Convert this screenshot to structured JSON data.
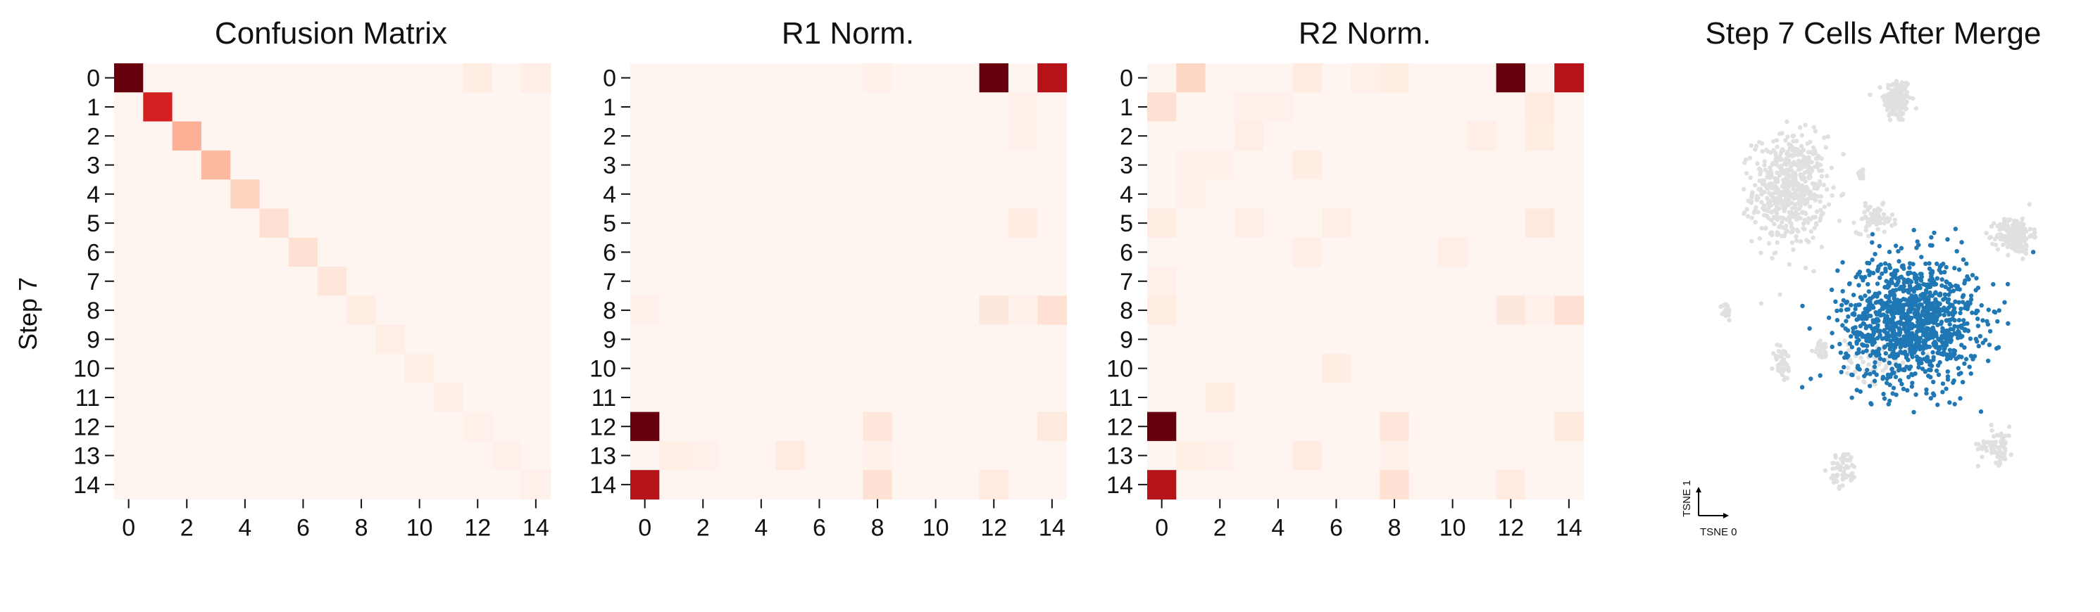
{
  "figure": {
    "ylabel": "Step 7"
  },
  "colormap": {
    "name": "Reds",
    "stops": [
      "#fff5f0",
      "#fee0d2",
      "#fcbba1",
      "#fc9272",
      "#fb6a4a",
      "#ef3b2c",
      "#cb181d",
      "#a50f15",
      "#67000d"
    ]
  },
  "chart_data": [
    {
      "type": "heatmap",
      "title": "Confusion Matrix",
      "rows": [
        "0",
        "1",
        "2",
        "3",
        "4",
        "5",
        "6",
        "7",
        "8",
        "9",
        "10",
        "11",
        "12",
        "13",
        "14"
      ],
      "cols": [
        "0",
        "1",
        "2",
        "3",
        "4",
        "5",
        "6",
        "7",
        "8",
        "9",
        "10",
        "11",
        "12",
        "13",
        "14"
      ],
      "xticks": [
        "0",
        "2",
        "4",
        "6",
        "8",
        "10",
        "12",
        "14"
      ],
      "ylabel": "Step 7",
      "vmax": 1.0,
      "matrix": [
        [
          1.0,
          0,
          0,
          0,
          0,
          0,
          0,
          0,
          0,
          0,
          0,
          0,
          0.05,
          0,
          0.04
        ],
        [
          0,
          0.72,
          0,
          0,
          0,
          0,
          0,
          0,
          0,
          0,
          0,
          0,
          0,
          0,
          0
        ],
        [
          0,
          0,
          0.28,
          0,
          0,
          0,
          0,
          0,
          0,
          0,
          0,
          0,
          0,
          0,
          0
        ],
        [
          0,
          0,
          0,
          0.25,
          0,
          0,
          0,
          0,
          0,
          0,
          0,
          0,
          0,
          0,
          0
        ],
        [
          0,
          0,
          0,
          0,
          0.17,
          0,
          0,
          0,
          0,
          0,
          0,
          0,
          0,
          0,
          0
        ],
        [
          0,
          0,
          0,
          0,
          0,
          0.12,
          0,
          0,
          0,
          0,
          0,
          0,
          0,
          0,
          0
        ],
        [
          0,
          0,
          0,
          0,
          0,
          0,
          0.12,
          0,
          0,
          0,
          0,
          0,
          0,
          0,
          0
        ],
        [
          0,
          0,
          0,
          0,
          0,
          0,
          0,
          0.09,
          0,
          0,
          0,
          0,
          0,
          0,
          0
        ],
        [
          0,
          0,
          0,
          0,
          0,
          0,
          0,
          0,
          0.05,
          0,
          0,
          0,
          0,
          0,
          0
        ],
        [
          0,
          0,
          0,
          0,
          0,
          0,
          0,
          0,
          0,
          0.04,
          0,
          0,
          0,
          0,
          0
        ],
        [
          0,
          0,
          0,
          0,
          0,
          0,
          0,
          0,
          0,
          0,
          0.04,
          0,
          0,
          0,
          0
        ],
        [
          0,
          0,
          0,
          0,
          0,
          0,
          0,
          0,
          0,
          0,
          0,
          0.04,
          0,
          0,
          0
        ],
        [
          0,
          0,
          0,
          0,
          0,
          0,
          0,
          0,
          0,
          0,
          0,
          0,
          0.03,
          0,
          0
        ],
        [
          0,
          0,
          0,
          0,
          0,
          0,
          0,
          0,
          0,
          0,
          0,
          0,
          0,
          0.03,
          0
        ],
        [
          0,
          0,
          0,
          0,
          0,
          0,
          0,
          0,
          0,
          0,
          0,
          0,
          0,
          0,
          0.03
        ]
      ]
    },
    {
      "type": "heatmap",
      "title": "R1 Norm.",
      "rows": [
        "0",
        "1",
        "2",
        "3",
        "4",
        "5",
        "6",
        "7",
        "8",
        "9",
        "10",
        "11",
        "12",
        "13",
        "14"
      ],
      "cols": [
        "0",
        "1",
        "2",
        "3",
        "4",
        "5",
        "6",
        "7",
        "8",
        "9",
        "10",
        "11",
        "12",
        "13",
        "14"
      ],
      "xticks": [
        "0",
        "2",
        "4",
        "6",
        "8",
        "10",
        "12",
        "14"
      ],
      "vmax": 1.0,
      "matrix": [
        [
          0,
          0,
          0,
          0,
          0,
          0,
          0,
          0,
          0.03,
          0,
          0,
          0,
          1.0,
          0,
          0.82
        ],
        [
          0,
          0,
          0,
          0,
          0,
          0,
          0,
          0,
          0,
          0,
          0,
          0,
          0,
          0.03,
          0
        ],
        [
          0,
          0,
          0,
          0,
          0,
          0,
          0,
          0,
          0,
          0,
          0,
          0,
          0,
          0.03,
          0
        ],
        [
          0,
          0,
          0,
          0,
          0,
          0,
          0,
          0,
          0,
          0,
          0,
          0,
          0,
          0,
          0
        ],
        [
          0,
          0,
          0,
          0,
          0,
          0,
          0,
          0,
          0,
          0,
          0,
          0,
          0,
          0,
          0
        ],
        [
          0,
          0,
          0,
          0,
          0,
          0,
          0,
          0,
          0,
          0,
          0,
          0,
          0,
          0.06,
          0
        ],
        [
          0,
          0,
          0,
          0,
          0,
          0,
          0,
          0,
          0,
          0,
          0,
          0,
          0,
          0,
          0
        ],
        [
          0,
          0,
          0,
          0,
          0,
          0,
          0,
          0,
          0,
          0,
          0,
          0,
          0,
          0,
          0
        ],
        [
          0.03,
          0,
          0,
          0,
          0,
          0,
          0,
          0,
          0,
          0,
          0,
          0,
          0.08,
          0.03,
          0.12
        ],
        [
          0,
          0,
          0,
          0,
          0,
          0,
          0,
          0,
          0,
          0,
          0,
          0,
          0,
          0,
          0
        ],
        [
          0,
          0,
          0,
          0,
          0,
          0,
          0,
          0,
          0,
          0,
          0,
          0,
          0,
          0,
          0
        ],
        [
          0,
          0,
          0,
          0,
          0,
          0,
          0,
          0,
          0,
          0,
          0,
          0,
          0,
          0,
          0
        ],
        [
          1.0,
          0,
          0,
          0,
          0,
          0,
          0,
          0,
          0.09,
          0,
          0,
          0,
          0,
          0,
          0.07
        ],
        [
          0,
          0.04,
          0.03,
          0,
          0,
          0.06,
          0,
          0,
          0.03,
          0,
          0,
          0,
          0,
          0,
          0
        ],
        [
          0.82,
          0,
          0,
          0,
          0,
          0,
          0,
          0,
          0.12,
          0,
          0,
          0,
          0.06,
          0,
          0
        ]
      ]
    },
    {
      "type": "heatmap",
      "title": "R2 Norm.",
      "rows": [
        "0",
        "1",
        "2",
        "3",
        "4",
        "5",
        "6",
        "7",
        "8",
        "9",
        "10",
        "11",
        "12",
        "13",
        "14"
      ],
      "cols": [
        "0",
        "1",
        "2",
        "3",
        "4",
        "5",
        "6",
        "7",
        "8",
        "9",
        "10",
        "11",
        "12",
        "13",
        "14"
      ],
      "xticks": [
        "0",
        "2",
        "4",
        "6",
        "8",
        "10",
        "12",
        "14"
      ],
      "vmax": 1.0,
      "matrix": [
        [
          0,
          0.16,
          0,
          0,
          0,
          0.06,
          0,
          0.03,
          0.05,
          0,
          0,
          0,
          1.0,
          0,
          0.82
        ],
        [
          0.12,
          0,
          0,
          0.03,
          0.03,
          0,
          0,
          0,
          0,
          0,
          0,
          0,
          0,
          0.06,
          0
        ],
        [
          0,
          0,
          0,
          0.04,
          0,
          0,
          0,
          0,
          0,
          0,
          0,
          0.04,
          0,
          0.05,
          0
        ],
        [
          0,
          0.03,
          0.03,
          0,
          0,
          0.05,
          0,
          0,
          0,
          0,
          0,
          0,
          0,
          0,
          0
        ],
        [
          0,
          0.03,
          0,
          0,
          0,
          0,
          0,
          0,
          0,
          0,
          0,
          0,
          0,
          0,
          0
        ],
        [
          0.05,
          0,
          0,
          0.04,
          0,
          0,
          0.04,
          0,
          0,
          0,
          0,
          0,
          0,
          0.07,
          0
        ],
        [
          0,
          0,
          0,
          0,
          0,
          0.04,
          0,
          0,
          0,
          0,
          0.04,
          0,
          0,
          0,
          0
        ],
        [
          0.03,
          0,
          0,
          0,
          0,
          0,
          0,
          0,
          0,
          0,
          0,
          0,
          0,
          0,
          0
        ],
        [
          0.05,
          0,
          0,
          0,
          0,
          0,
          0,
          0,
          0,
          0,
          0,
          0,
          0.08,
          0.03,
          0.12
        ],
        [
          0,
          0,
          0,
          0,
          0,
          0,
          0,
          0,
          0,
          0,
          0,
          0,
          0,
          0,
          0
        ],
        [
          0,
          0,
          0,
          0,
          0,
          0,
          0.05,
          0,
          0,
          0,
          0,
          0,
          0,
          0,
          0
        ],
        [
          0,
          0,
          0.05,
          0,
          0,
          0,
          0,
          0,
          0,
          0,
          0,
          0,
          0,
          0,
          0
        ],
        [
          1.0,
          0,
          0,
          0,
          0,
          0,
          0,
          0,
          0.09,
          0,
          0,
          0,
          0,
          0,
          0.07
        ],
        [
          0,
          0.04,
          0.03,
          0,
          0,
          0.06,
          0,
          0,
          0.03,
          0,
          0,
          0,
          0,
          0,
          0
        ],
        [
          0.82,
          0,
          0,
          0,
          0,
          0,
          0,
          0,
          0.12,
          0,
          0,
          0,
          0.06,
          0,
          0
        ]
      ]
    },
    {
      "type": "scatter",
      "title": "Step 7 Cells After Merge",
      "xlabel": "TSNE 0",
      "ylabel": "TSNE 1",
      "background_color": "#e0e0e0",
      "highlight_color": "#1f77b4",
      "background_groups": [
        {
          "name": "top",
          "cx": 6,
          "cy": 93,
          "sx": 3,
          "sy": 5,
          "n": 160
        },
        {
          "name": "left-large",
          "cx": -42,
          "cy": 53,
          "sx": 8,
          "sy": 12,
          "n": 560
        },
        {
          "name": "small-top-middle",
          "cx": -10,
          "cy": 60,
          "sx": 1,
          "sy": 1,
          "n": 14
        },
        {
          "name": "small-right-of-left",
          "cx": -4,
          "cy": 40,
          "sx": 4,
          "sy": 3,
          "n": 70
        },
        {
          "name": "right-blob",
          "cx": 58,
          "cy": 33,
          "sx": 4,
          "sy": 4,
          "n": 180
        },
        {
          "name": "left-small",
          "cx": -70,
          "cy": -1,
          "sx": 1,
          "sy": 2,
          "n": 20
        },
        {
          "name": "lower-left",
          "cx": -45,
          "cy": -24,
          "sx": 2,
          "sy": 4,
          "n": 45
        },
        {
          "name": "lower-mid",
          "cx": -27,
          "cy": -18,
          "sx": 2,
          "sy": 2,
          "n": 25
        },
        {
          "name": "bottom-mid",
          "cx": -18,
          "cy": -71,
          "sx": 3,
          "sy": 4,
          "n": 60
        },
        {
          "name": "bottom-right",
          "cx": 50,
          "cy": -60,
          "sx": 4,
          "sy": 4,
          "n": 65
        },
        {
          "name": "grey-under-blue",
          "cx": -3,
          "cy": -22,
          "sx": 7,
          "sy": 5,
          "n": 60
        }
      ],
      "highlight_groups": [
        {
          "name": "Step 7 cluster",
          "cx": 12,
          "cy": -5,
          "sx": 15,
          "sy": 14,
          "n": 1150
        }
      ]
    }
  ]
}
